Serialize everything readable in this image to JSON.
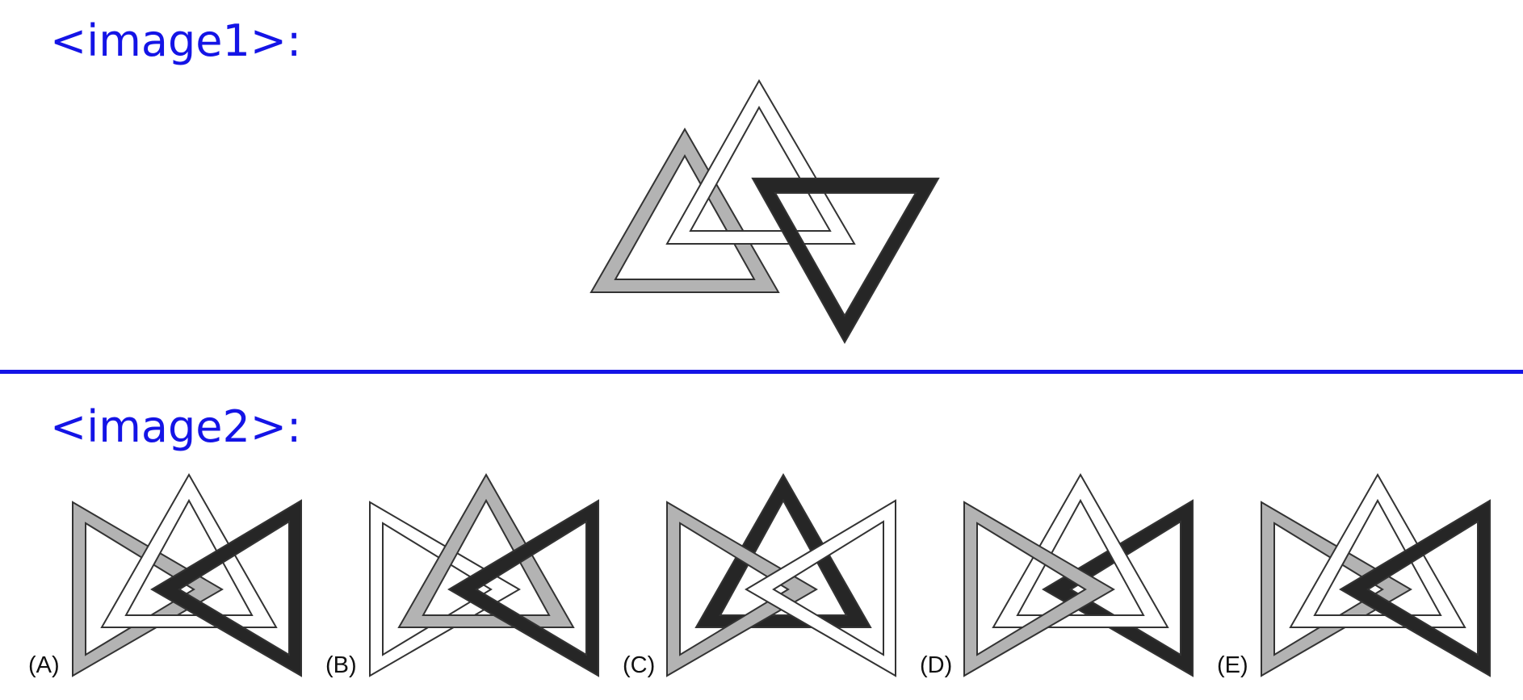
{
  "headings": {
    "image1": "<image1>:",
    "image2": "<image2>:"
  },
  "options": [
    {
      "label": "(A)"
    },
    {
      "label": "(B)"
    },
    {
      "label": "(C)"
    },
    {
      "label": "(D)"
    },
    {
      "label": "(E)"
    }
  ],
  "colors": {
    "heading": "#1414e6",
    "divider": "#1414e6",
    "gray": "#b3b3b3",
    "white": "#ffffff",
    "dark": "#262626",
    "outline": "#333333"
  }
}
